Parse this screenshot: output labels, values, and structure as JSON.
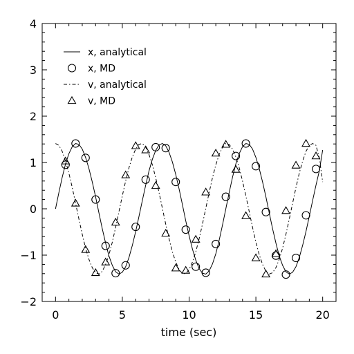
{
  "chart_data": {
    "type": "line",
    "xlabel": "time (sec)",
    "ylabel": "",
    "xlim": [
      -1,
      21
    ],
    "ylim": [
      -2,
      4
    ],
    "x_ticks": [
      "0",
      "5",
      "10",
      "15",
      "20"
    ],
    "y_ticks": [
      "−2",
      "−1",
      "0",
      "1",
      "2",
      "3",
      "4"
    ],
    "legend_position": "upper-left",
    "grid": false,
    "series": [
      {
        "name": "x, analytical",
        "style": "solid-line",
        "color": "#000000",
        "x": [
          0,
          0.25,
          0.5,
          0.75,
          1,
          1.25,
          1.5,
          1.75,
          2,
          2.25,
          2.5,
          2.75,
          3,
          3.25,
          3.5,
          3.75,
          4,
          4.25,
          4.5,
          4.75,
          5,
          5.25,
          5.5,
          5.75,
          6,
          6.25,
          6.5,
          6.75,
          7,
          7.25,
          7.5,
          7.75,
          8,
          8.25,
          8.5,
          8.75,
          9,
          9.25,
          9.5,
          9.75,
          10,
          10.25,
          10.5,
          10.75,
          11,
          11.25,
          11.5,
          11.75,
          12,
          12.25,
          12.5,
          12.75,
          13,
          13.25,
          13.5,
          13.75,
          14,
          14.25,
          14.5,
          14.75,
          15,
          15.25,
          15.5,
          15.75,
          16,
          16.25,
          16.5,
          16.75,
          17,
          17.25,
          17.5,
          17.75,
          18,
          18.25,
          18.5,
          18.75,
          19,
          19.25,
          19.5,
          19.75,
          20
        ],
        "y": [
          0.0,
          0.35,
          0.68,
          0.97,
          1.19,
          1.34,
          1.41,
          1.39,
          1.29,
          1.11,
          0.87,
          0.58,
          0.26,
          -0.09,
          -0.43,
          -0.74,
          -1.02,
          -1.22,
          -1.36,
          -1.41,
          -1.37,
          -1.25,
          -1.05,
          -0.79,
          -0.49,
          -0.16,
          0.18,
          0.51,
          0.82,
          1.07,
          1.26,
          1.38,
          1.41,
          1.36,
          1.22,
          1.01,
          0.74,
          0.43,
          0.09,
          -0.26,
          -0.58,
          -0.87,
          -1.11,
          -1.29,
          -1.39,
          -1.41,
          -1.34,
          -1.19,
          -0.97,
          -0.68,
          -0.35,
          0.0,
          0.35,
          0.68,
          0.97,
          1.19,
          1.34,
          1.41,
          1.39,
          1.29,
          1.11,
          0.87,
          0.58,
          0.26,
          -0.09,
          -0.43,
          -0.74,
          -1.02,
          -1.22,
          -1.36,
          -1.41,
          -1.37,
          -1.25,
          -1.05,
          -0.79,
          -0.49,
          -0.16,
          0.18,
          0.51,
          0.82,
          1.27
        ]
      },
      {
        "name": "x, MD",
        "style": "open-circle",
        "color": "#000000",
        "x": [
          0.75,
          1.5,
          2.25,
          3.0,
          3.75,
          4.5,
          5.25,
          6.0,
          6.75,
          7.5,
          8.25,
          9.0,
          9.75,
          10.5,
          11.25,
          12.0,
          12.75,
          13.5,
          14.25,
          15.0,
          15.75,
          16.5,
          17.25,
          18.0,
          18.75,
          19.5
        ],
        "y": [
          0.95,
          1.41,
          1.1,
          0.2,
          -0.8,
          -1.39,
          -1.22,
          -0.39,
          0.63,
          1.33,
          1.31,
          0.58,
          -0.45,
          -1.25,
          -1.38,
          -0.76,
          0.26,
          1.14,
          1.41,
          0.92,
          -0.07,
          -1.01,
          -1.42,
          -1.06,
          -0.14,
          0.86
        ]
      },
      {
        "name": "v, analytical",
        "style": "dash-dot-line",
        "color": "#000000",
        "x": [
          0,
          0.25,
          0.5,
          0.75,
          1,
          1.25,
          1.5,
          1.75,
          2,
          2.25,
          2.5,
          2.75,
          3,
          3.25,
          3.5,
          3.75,
          4,
          4.25,
          4.5,
          4.75,
          5,
          5.25,
          5.5,
          5.75,
          6,
          6.25,
          6.5,
          6.75,
          7,
          7.25,
          7.5,
          7.75,
          8,
          8.25,
          8.5,
          8.75,
          9,
          9.25,
          9.5,
          9.75,
          10,
          10.25,
          10.5,
          10.75,
          11,
          11.25,
          11.5,
          11.75,
          12,
          12.25,
          12.5,
          12.75,
          13,
          13.25,
          13.5,
          13.75,
          14,
          14.25,
          14.5,
          14.75,
          15,
          15.25,
          15.5,
          15.75,
          16,
          16.25,
          16.5,
          16.75,
          17,
          17.25,
          17.5,
          17.75,
          18,
          18.25,
          18.5,
          18.75,
          19,
          19.25,
          19.5,
          19.75,
          20
        ],
        "y": [
          1.41,
          1.37,
          1.24,
          1.03,
          0.77,
          0.46,
          0.12,
          -0.22,
          -0.55,
          -0.85,
          -1.09,
          -1.27,
          -1.38,
          -1.41,
          -1.35,
          -1.2,
          -0.99,
          -0.72,
          -0.4,
          -0.06,
          0.28,
          0.6,
          0.89,
          1.12,
          1.29,
          1.39,
          1.41,
          1.33,
          1.17,
          0.95,
          0.67,
          0.35,
          0.01,
          -0.33,
          -0.65,
          -0.93,
          -1.15,
          -1.31,
          -1.4,
          -1.4,
          -1.31,
          -1.15,
          -0.93,
          -0.65,
          -0.33,
          0.01,
          0.35,
          0.67,
          0.95,
          1.17,
          1.33,
          1.41,
          1.39,
          1.29,
          1.12,
          0.89,
          0.6,
          0.28,
          -0.06,
          -0.4,
          -0.72,
          -0.99,
          -1.2,
          -1.35,
          -1.41,
          -1.38,
          -1.27,
          -1.09,
          -0.85,
          -0.55,
          -0.22,
          0.12,
          0.46,
          0.77,
          1.03,
          1.24,
          1.37,
          1.41,
          1.37,
          1.1,
          0.58
        ]
      },
      {
        "name": "v, MD",
        "style": "open-triangle",
        "color": "#000000",
        "x": [
          0.75,
          1.5,
          2.25,
          3.0,
          3.75,
          4.5,
          5.25,
          6.0,
          6.75,
          7.5,
          8.25,
          9.0,
          9.75,
          10.5,
          11.25,
          12.0,
          12.75,
          13.5,
          14.25,
          15.0,
          15.75,
          16.5,
          17.25,
          18.0,
          18.75,
          19.5
        ],
        "y": [
          1.03,
          0.12,
          -0.88,
          -1.38,
          -1.15,
          -0.29,
          0.73,
          1.36,
          1.27,
          0.5,
          -0.53,
          -1.28,
          -1.33,
          -0.66,
          0.36,
          1.2,
          1.39,
          0.85,
          -0.15,
          -1.06,
          -1.41,
          -0.97,
          -0.04,
          0.94,
          1.41,
          1.14
        ]
      }
    ]
  }
}
